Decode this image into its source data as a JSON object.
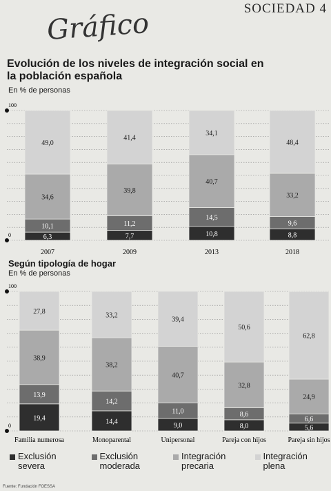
{
  "page": {
    "header_right": "SOCIEDAD 4",
    "handwriting": "Gráfico",
    "title": "Evolución de los niveles de integración social en la población española",
    "chart1_unit": "En % de personas",
    "chart2_title": "Según tipología de hogar",
    "chart2_unit": "En % de personas",
    "source": "Fuente: Fundación FOESSA"
  },
  "legend": [
    {
      "name": "Exclusión severa",
      "color": "#2e2e2e"
    },
    {
      "name": "Exclusión moderada",
      "color": "#6d6d6d"
    },
    {
      "name": "Integración precaria",
      "color": "#aaaaaa"
    },
    {
      "name": "Integración plena",
      "color": "#d3d3d3"
    }
  ],
  "chart_data": [
    {
      "type": "bar",
      "stacked": true,
      "title": "Evolución de los niveles de integración social en la población española",
      "ylabel": "En % de personas",
      "ylim": [
        0,
        100
      ],
      "yticks": [
        "0",
        "100"
      ],
      "categories": [
        "2007",
        "2009",
        "2013",
        "2018"
      ],
      "series": [
        {
          "name": "Exclusión severa",
          "values": [
            6.3,
            7.7,
            10.8,
            8.8
          ],
          "labels": [
            "6,3",
            "7,7",
            "10,8",
            "8,8"
          ]
        },
        {
          "name": "Exclusión moderada",
          "values": [
            10.1,
            11.2,
            14.5,
            9.6
          ],
          "labels": [
            "10,1",
            "11,2",
            "14,5",
            "9,6"
          ]
        },
        {
          "name": "Integración precaria",
          "values": [
            34.6,
            39.8,
            40.7,
            33.2
          ],
          "labels": [
            "34,6",
            "39,8",
            "40,7",
            "33,2"
          ]
        },
        {
          "name": "Integración plena",
          "values": [
            49.0,
            41.4,
            34.1,
            48.4
          ],
          "labels": [
            "49,0",
            "41,4",
            "34,1",
            "48,4"
          ]
        }
      ]
    },
    {
      "type": "bar",
      "stacked": true,
      "title": "Según tipología de hogar",
      "ylabel": "En % de personas",
      "ylim": [
        0,
        100
      ],
      "yticks": [
        "0",
        "100"
      ],
      "categories": [
        "Familia numerosa",
        "Monoparental",
        "Unipersonal",
        "Pareja con hijos",
        "Pareja sin hijos"
      ],
      "series": [
        {
          "name": "Exclusión severa",
          "values": [
            19.4,
            14.4,
            9.0,
            8.0,
            5.6
          ],
          "labels": [
            "19,4",
            "14,4",
            "9,0",
            "8,0",
            "5,6"
          ]
        },
        {
          "name": "Exclusión moderada",
          "values": [
            13.9,
            14.2,
            11.0,
            8.6,
            6.6
          ],
          "labels": [
            "13,9",
            "14,2",
            "11,0",
            "8,6",
            "6,6"
          ]
        },
        {
          "name": "Integración precaria",
          "values": [
            38.9,
            38.2,
            40.7,
            32.8,
            24.9
          ],
          "labels": [
            "38,9",
            "38,2",
            "40,7",
            "32,8",
            "24,9"
          ]
        },
        {
          "name": "Integración plena",
          "values": [
            27.8,
            33.2,
            39.4,
            50.6,
            62.8
          ],
          "labels": [
            "27,8",
            "33,2",
            "39,4",
            "50,6",
            "62,8"
          ]
        }
      ]
    }
  ]
}
